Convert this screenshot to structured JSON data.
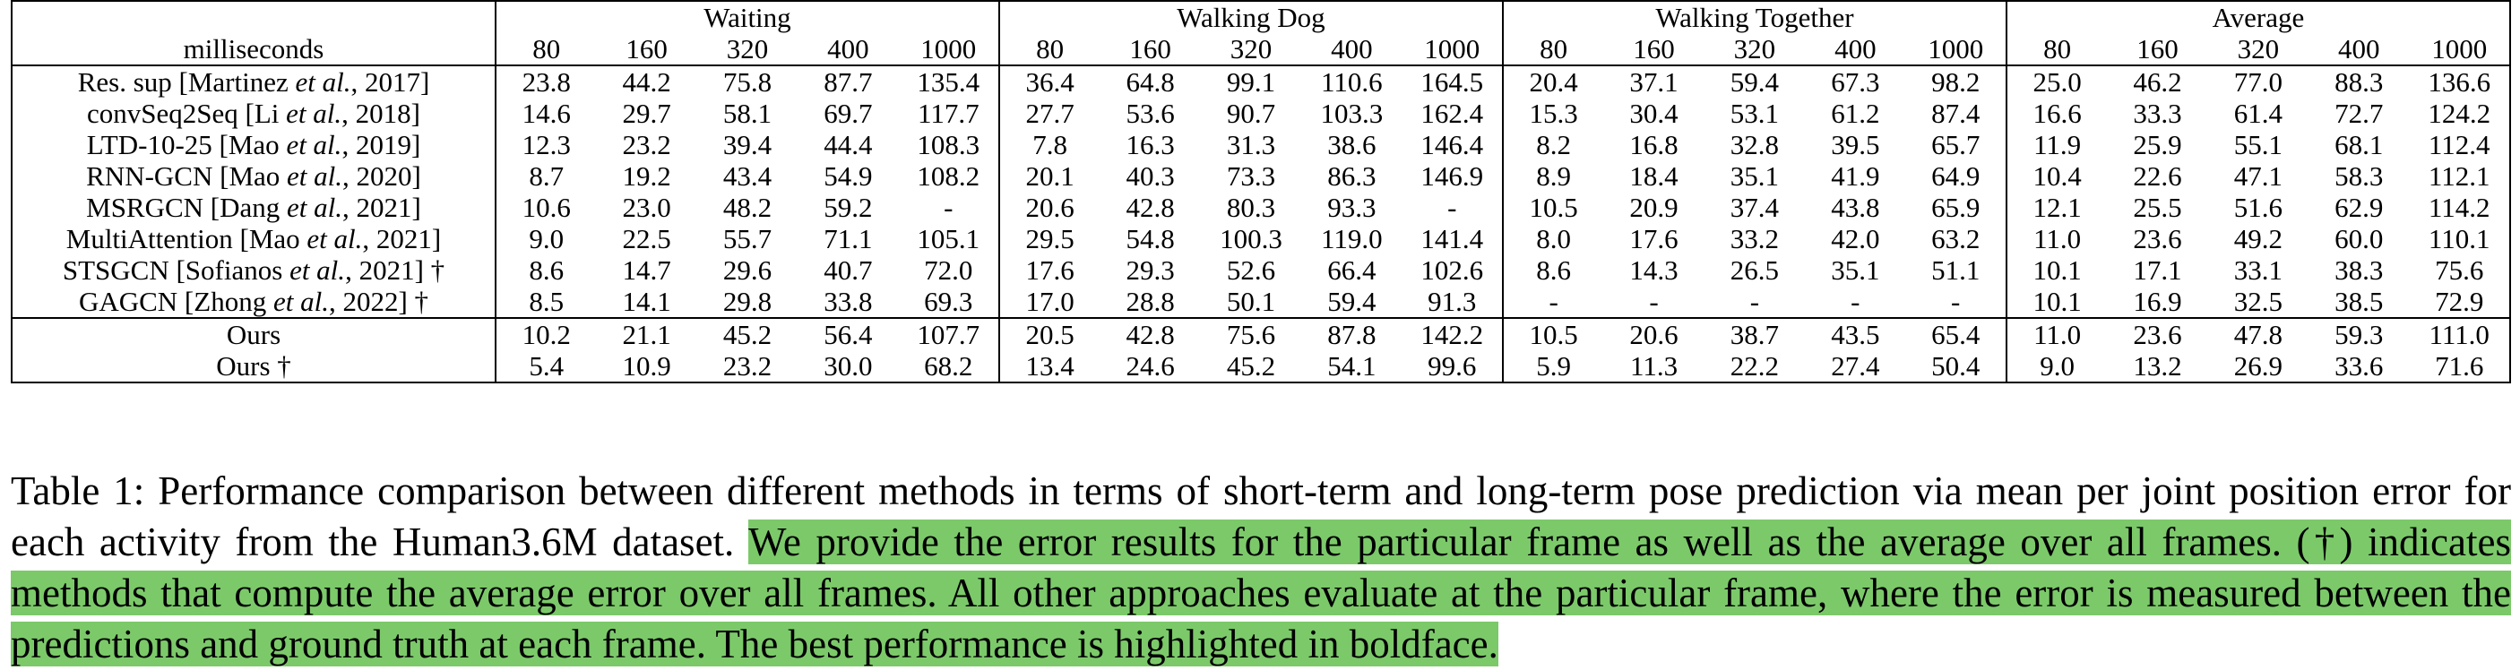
{
  "table": {
    "corner_label": "milliseconds",
    "groups": [
      "Waiting",
      "Walking Dog",
      "Walking Together",
      "Average"
    ],
    "horizons": [
      "80",
      "160",
      "320",
      "400",
      "1000"
    ],
    "rows": [
      {
        "method": "Res. sup  [Martinez et al., 2017]",
        "author": "Martinez",
        "year": "2017",
        "cells": [
          "23.8",
          "44.2",
          "75.8",
          "87.7",
          "135.4",
          "36.4",
          "64.8",
          "99.1",
          "110.6",
          "164.5",
          "20.4",
          "37.1",
          "59.4",
          "67.3",
          "98.2",
          "25.0",
          "46.2",
          "77.0",
          "88.3",
          "136.6"
        ]
      },
      {
        "method": "convSeq2Seq  [Li et al., 2018]",
        "author": "Li",
        "year": "2018",
        "cells": [
          "14.6",
          "29.7",
          "58.1",
          "69.7",
          "117.7",
          "27.7",
          "53.6",
          "90.7",
          "103.3",
          "162.4",
          "15.3",
          "30.4",
          "53.1",
          "61.2",
          "87.4",
          "16.6",
          "33.3",
          "61.4",
          "72.7",
          "124.2"
        ]
      },
      {
        "method": "LTD-10-25 [Mao et al., 2019]",
        "author": "Mao",
        "year": "2019",
        "cells": [
          "12.3",
          "23.2",
          "39.4",
          "44.4",
          "108.3",
          "7.8",
          "16.3",
          "31.3",
          "38.6",
          "146.4",
          "8.2",
          "16.8",
          "32.8",
          "39.5",
          "65.7",
          "11.9",
          "25.9",
          "55.1",
          "68.1",
          "112.4"
        ]
      },
      {
        "method": "RNN-GCN [Mao et al., 2020]",
        "author": "Mao",
        "year": "2020",
        "cells": [
          "8.7",
          "19.2",
          "43.4",
          "54.9",
          "108.2",
          "20.1",
          "40.3",
          "73.3",
          "86.3",
          "146.9",
          "8.9",
          "18.4",
          "35.1",
          "41.9",
          "64.9",
          "10.4",
          "22.6",
          "47.1",
          "58.3",
          "112.1"
        ]
      },
      {
        "method": "MSRGCN [Dang et al., 2021]",
        "author": "Dang",
        "year": "2021",
        "cells": [
          "10.6",
          "23.0",
          "48.2",
          "59.2",
          "-",
          "20.6",
          "42.8",
          "80.3",
          "93.3",
          "-",
          "10.5",
          "20.9",
          "37.4",
          "43.8",
          "65.9",
          "12.1",
          "25.5",
          "51.6",
          "62.9",
          "114.2"
        ]
      },
      {
        "method": "MultiAttention [Mao et al., 2021]",
        "author": "Mao",
        "year": "2021",
        "cells": [
          "9.0",
          "22.5",
          "55.7",
          "71.1",
          "105.1",
          "29.5",
          "54.8",
          "100.3",
          "119.0",
          "141.4",
          "8.0",
          "17.6",
          "33.2",
          "42.0",
          "63.2",
          "11.0",
          "23.6",
          "49.2",
          "60.0",
          "110.1"
        ]
      },
      {
        "method": "STSGCN [Sofianos et al., 2021] †",
        "author": "Sofianos",
        "year": "2021",
        "dagger": "†",
        "cells": [
          "8.6",
          "14.7",
          "29.6",
          "40.7",
          "72.0",
          "17.6",
          "29.3",
          "52.6",
          "66.4",
          "102.6",
          "8.6",
          "14.3",
          "26.5",
          "35.1",
          "51.1",
          "10.1",
          "17.1",
          "33.1",
          "38.3",
          "75.6"
        ]
      },
      {
        "method": "GAGCN [Zhong et al., 2022] †",
        "author": "Zhong",
        "year": "2022",
        "dagger": "†",
        "cells": [
          "8.5",
          "14.1",
          "29.8",
          "33.8",
          "69.3",
          "17.0",
          "28.8",
          "50.1",
          "59.4",
          "91.3",
          "-",
          "-",
          "-",
          "-",
          "-",
          "10.1",
          "16.9",
          "32.5",
          "38.5",
          "72.9"
        ]
      }
    ],
    "ours_rows": [
      {
        "method": "Ours",
        "bold": false,
        "cells": [
          "10.2",
          "21.1",
          "45.2",
          "56.4",
          "107.7",
          "20.5",
          "42.8",
          "75.6",
          "87.8",
          "142.2",
          "10.5",
          "20.6",
          "38.7",
          "43.5",
          "65.4",
          "11.0",
          "23.6",
          "47.8",
          "59.3",
          "111.0"
        ]
      },
      {
        "method": "Ours †",
        "bold": true,
        "cells": [
          "5.4",
          "10.9",
          "23.2",
          "30.0",
          "68.2",
          "13.4",
          "24.6",
          "45.2",
          "54.1",
          "99.6",
          "5.9",
          "11.3",
          "22.2",
          "27.4",
          "50.4",
          "9.0",
          "13.2",
          "26.9",
          "33.6",
          "71.6"
        ]
      }
    ]
  },
  "caption": {
    "part1": "Table 1: Performance comparison between different methods in terms of short-term and long-term pose prediction via mean per joint position error for each activity from the Human3.6M dataset. ",
    "highlighted": "We provide the error results for the particular frame as well as the average over all frames. (†) indicates methods that compute the average error over all frames. All other approaches evaluate at the particular frame, where the error is measured between the predictions and ground truth at each frame. The best performance is highlighted in boldface.",
    "highlight_color": "#7cc96a"
  }
}
